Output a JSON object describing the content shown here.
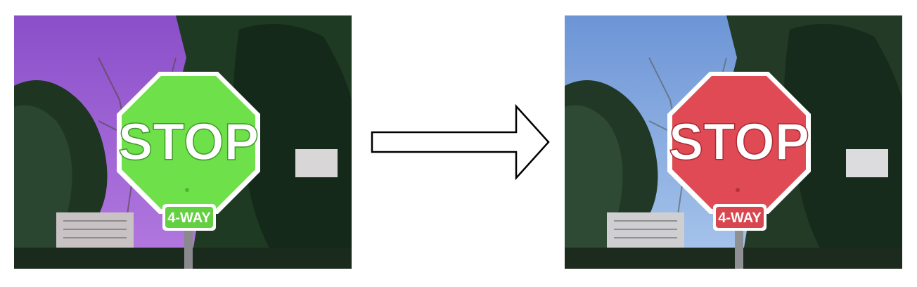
{
  "panels": [
    {
      "id": "before",
      "sign_text": "STOP",
      "plate_text": "4-WAY",
      "colors": {
        "sky": "#9b5fd3",
        "sky_top": "#8a4fc9",
        "sign": "#6ee04a",
        "sign_dark": "#52b52f",
        "plate": "#62d040"
      }
    },
    {
      "id": "after",
      "sign_text": "STOP",
      "plate_text": "4-WAY",
      "colors": {
        "sky": "#8fb3e6",
        "sky_top": "#6d95d6",
        "sign": "#e04a54",
        "sign_dark": "#b8303a",
        "plate": "#d8474f"
      }
    }
  ],
  "arrow": {
    "direction": "right",
    "stroke": "#000000",
    "fill": "#ffffff"
  }
}
